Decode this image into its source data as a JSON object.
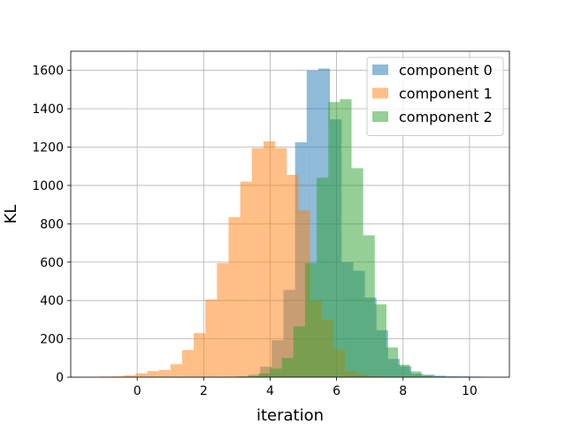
{
  "chart_data": {
    "type": "histogram",
    "xlabel": "iteration",
    "ylabel": "KL",
    "xlim": [
      -2.0,
      11.2
    ],
    "ylim": [
      0,
      1700
    ],
    "xticks": [
      0,
      2,
      4,
      6,
      8,
      10
    ],
    "yticks": [
      0,
      200,
      400,
      600,
      800,
      1000,
      1200,
      1400,
      1600
    ],
    "grid": true,
    "legend_position": "top-right",
    "opacity": 0.5,
    "series": [
      {
        "name": "component 0",
        "color": "#1f77b4",
        "bins": [
          [
            2.3,
            2.65,
            0
          ],
          [
            2.65,
            3.0,
            2
          ],
          [
            3.0,
            3.35,
            5
          ],
          [
            3.35,
            3.7,
            13
          ],
          [
            3.7,
            4.05,
            55
          ],
          [
            4.05,
            4.4,
            193
          ],
          [
            4.4,
            4.75,
            455
          ],
          [
            4.75,
            5.1,
            1225
          ],
          [
            5.1,
            5.45,
            1600
          ],
          [
            5.45,
            5.8,
            1610
          ],
          [
            5.8,
            6.15,
            1345
          ],
          [
            6.15,
            6.5,
            600
          ],
          [
            6.5,
            6.85,
            555
          ],
          [
            6.85,
            7.2,
            415
          ],
          [
            7.2,
            7.55,
            245
          ],
          [
            7.55,
            7.9,
            95
          ],
          [
            7.9,
            8.25,
            57
          ],
          [
            8.25,
            8.6,
            18
          ],
          [
            8.6,
            8.95,
            13
          ],
          [
            8.95,
            9.3,
            8
          ],
          [
            9.3,
            9.65,
            5
          ],
          [
            9.65,
            10.0,
            4
          ],
          [
            10.0,
            10.35,
            3
          ]
        ]
      },
      {
        "name": "component 1",
        "color": "#ff7f0e",
        "bins": [
          [
            -1.1,
            -0.75,
            3
          ],
          [
            -0.75,
            -0.4,
            4
          ],
          [
            -0.4,
            -0.05,
            10
          ],
          [
            -0.05,
            0.3,
            20
          ],
          [
            0.3,
            0.65,
            32
          ],
          [
            0.65,
            1.0,
            38
          ],
          [
            1.0,
            1.35,
            68
          ],
          [
            1.35,
            1.7,
            142
          ],
          [
            1.7,
            2.05,
            230
          ],
          [
            2.05,
            2.4,
            405
          ],
          [
            2.4,
            2.75,
            595
          ],
          [
            2.75,
            3.1,
            835
          ],
          [
            3.1,
            3.45,
            1020
          ],
          [
            3.45,
            3.8,
            1195
          ],
          [
            3.8,
            4.15,
            1230
          ],
          [
            4.15,
            4.5,
            1195
          ],
          [
            4.5,
            4.85,
            1055
          ],
          [
            4.85,
            5.2,
            870
          ],
          [
            5.2,
            5.55,
            400
          ],
          [
            5.55,
            5.9,
            300
          ],
          [
            5.9,
            6.25,
            145
          ],
          [
            6.25,
            6.6,
            32
          ],
          [
            6.6,
            6.95,
            15
          ],
          [
            6.95,
            7.3,
            5
          ]
        ]
      },
      {
        "name": "component 2",
        "color": "#2ca02c",
        "bins": [
          [
            3.3,
            3.65,
            5
          ],
          [
            3.65,
            4.0,
            20
          ],
          [
            4.0,
            4.35,
            45
          ],
          [
            4.35,
            4.7,
            100
          ],
          [
            4.7,
            5.05,
            265
          ],
          [
            5.05,
            5.4,
            595
          ],
          [
            5.4,
            5.75,
            1040
          ],
          [
            5.75,
            6.1,
            1435
          ],
          [
            6.1,
            6.45,
            1450
          ],
          [
            6.45,
            6.8,
            1090
          ],
          [
            6.8,
            7.15,
            740
          ],
          [
            7.15,
            7.5,
            380
          ],
          [
            7.5,
            7.85,
            155
          ],
          [
            7.85,
            8.2,
            65
          ],
          [
            8.2,
            8.55,
            30
          ],
          [
            8.55,
            8.9,
            8
          ],
          [
            8.9,
            9.25,
            3
          ]
        ]
      }
    ]
  }
}
